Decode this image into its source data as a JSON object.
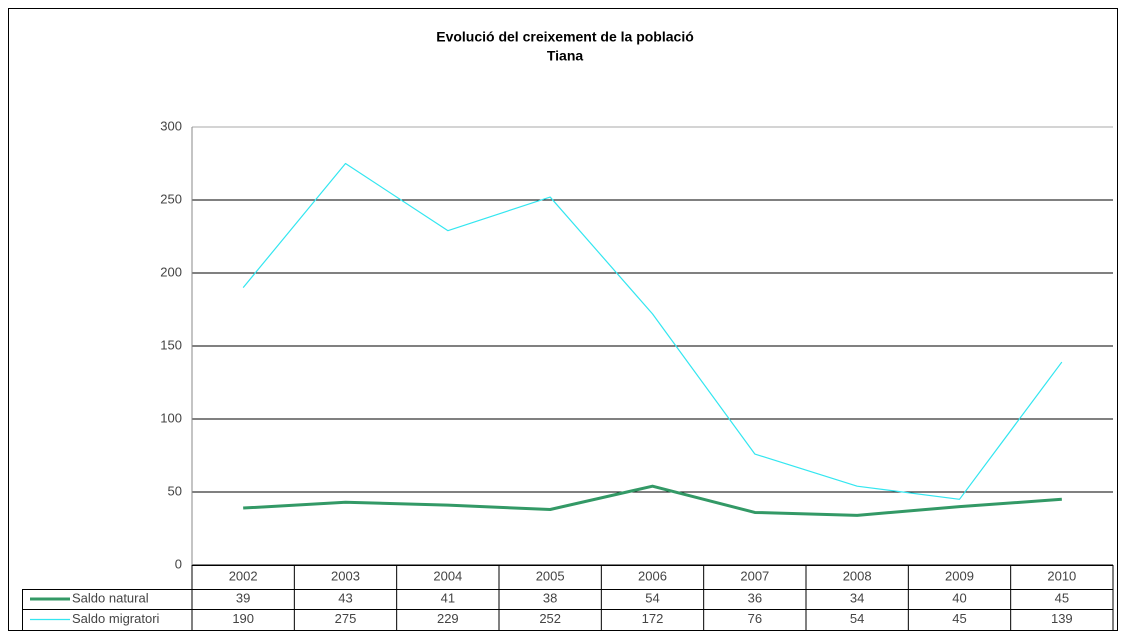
{
  "chart_data": {
    "type": "line",
    "title": "Evolució del creixement de la població",
    "subtitle": "Tiana",
    "categories": [
      "2002",
      "2003",
      "2004",
      "2005",
      "2006",
      "2007",
      "2008",
      "2009",
      "2010"
    ],
    "series": [
      {
        "name": "Saldo natural",
        "color": "#339966",
        "values": [
          39,
          43,
          41,
          38,
          54,
          36,
          34,
          40,
          45
        ]
      },
      {
        "name": "Saldo migratori",
        "color": "#33e6f0",
        "values": [
          190,
          275,
          229,
          252,
          172,
          76,
          54,
          45,
          139
        ]
      }
    ],
    "ylim": [
      0,
      300
    ],
    "yticks": [
      0,
      50,
      100,
      150,
      200,
      250,
      300
    ],
    "grid": true
  }
}
